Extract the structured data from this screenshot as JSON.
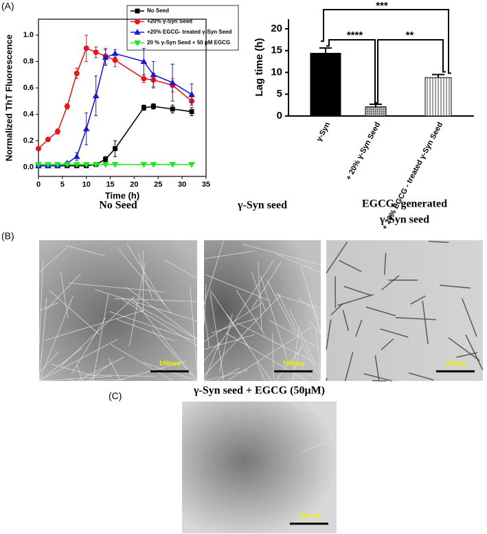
{
  "panel_labels": [
    "(A)",
    "(B)",
    "(C)"
  ],
  "chart_data": [
    {
      "type": "line",
      "xlabel": "Time (h)",
      "ylabel": "Normalized ThT Fluorescence",
      "x": [
        0,
        2,
        4,
        6,
        8,
        10,
        12,
        14,
        16,
        22,
        24,
        28,
        32
      ],
      "xlim": [
        0,
        35
      ],
      "xticks": [
        0,
        5,
        10,
        15,
        20,
        25,
        30,
        35
      ],
      "ylim": [
        -0.07,
        1.12
      ],
      "yticks": [
        {
          "value": 0,
          "label": "0.0"
        },
        0.2,
        0.4,
        0.6,
        0.8,
        {
          "value": 1,
          "label": "1.0"
        }
      ],
      "series": [
        {
          "name": "No Seed",
          "color": "#000000",
          "marker": "square",
          "values": [
            0.01,
            0.01,
            0.01,
            0.01,
            0.01,
            0.01,
            0.02,
            0.06,
            0.14,
            0.45,
            0.46,
            0.44,
            0.42
          ],
          "errors": [
            0,
            0,
            0,
            0,
            0,
            0,
            0.01,
            0.02,
            0.06,
            0.02,
            0.02,
            0.03,
            0.03
          ]
        },
        {
          "name": "+20% γ-Syn Seed",
          "color": "#e8161b",
          "marker": "circle",
          "values": [
            0.14,
            0.21,
            0.27,
            0.46,
            0.71,
            0.9,
            0.87,
            0.84,
            0.81,
            0.67,
            0.66,
            0.62,
            0.5
          ],
          "errors": [
            0.01,
            0.01,
            0.02,
            0.02,
            0.04,
            0.1,
            0.04,
            0.06,
            0.05,
            0.03,
            0.05,
            0.05,
            0.03
          ]
        },
        {
          "name": "+20% EGCG- treated γ-Syn Seed",
          "color": "#1a1ad6",
          "marker": "triangle-up",
          "values": [
            0.01,
            0.01,
            0.01,
            0.03,
            0.08,
            0.29,
            0.54,
            0.83,
            0.86,
            0.8,
            0.7,
            0.64,
            0.55
          ],
          "errors": [
            0,
            0,
            0,
            0.01,
            0.03,
            0.12,
            0.15,
            0.06,
            0.03,
            0.1,
            0.1,
            0.14,
            0.08
          ]
        },
        {
          "name": "20 % γ-Syn Seed + 50 μM EGCG",
          "color": "#22e622",
          "marker": "triangle-down",
          "values": [
            0.02,
            0.02,
            0.02,
            0.02,
            0.02,
            0.02,
            0.02,
            0.02,
            0.02,
            0.02,
            0.02,
            0.02,
            0.02
          ],
          "errors": [
            0,
            0,
            0,
            0,
            0,
            0,
            0,
            0,
            0,
            0,
            0,
            0,
            0
          ]
        }
      ]
    },
    {
      "type": "bar",
      "ylabel": "Lag time (h)",
      "categories": [
        "γ-Syn",
        "+ 20% γ-Syn Seed",
        "+ 20% EGCG - treated γ-Syn Seed"
      ],
      "values": [
        14.4,
        2.1,
        8.8
      ],
      "errors": [
        1.2,
        0.6,
        0.7
      ],
      "colors": [
        "#000000",
        "#8a8a8a",
        "#ffffff"
      ],
      "ylim": [
        0,
        22.2
      ],
      "yticks": [
        0,
        5,
        10,
        15,
        20
      ],
      "annotations": [
        "***",
        "****",
        "**"
      ]
    }
  ],
  "micrographs": [
    {
      "title": [
        "No Seed"
      ],
      "scale_bar": "100nm"
    },
    {
      "title": [
        "γ-Syn seed"
      ],
      "scale_bar": "100nm"
    },
    {
      "title": [
        "EGCG- generated",
        "γ-Syn seed"
      ],
      "scale_bar": "100nm"
    },
    {
      "title": [
        "γ-Syn seed + EGCG (50μM)"
      ],
      "scale_bar": "100 nm"
    }
  ]
}
